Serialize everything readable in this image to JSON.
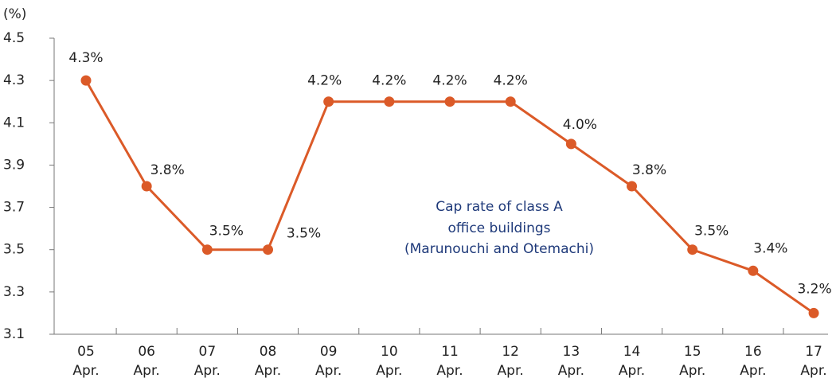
{
  "chart_data": {
    "type": "line",
    "y_axis_label": "(%)",
    "annotation": [
      "Cap rate of class A",
      "office buildings",
      "(Marunouchi and Otemachi)"
    ],
    "categories": [
      [
        "05",
        "Apr."
      ],
      [
        "06",
        "Apr."
      ],
      [
        "07",
        "Apr."
      ],
      [
        "08",
        "Apr."
      ],
      [
        "09",
        "Apr."
      ],
      [
        "10",
        "Apr."
      ],
      [
        "11",
        "Apr."
      ],
      [
        "12",
        "Apr."
      ],
      [
        "13",
        "Apr."
      ],
      [
        "14",
        "Apr."
      ],
      [
        "15",
        "Apr."
      ],
      [
        "16",
        "Apr."
      ],
      [
        "17",
        "Apr."
      ]
    ],
    "series": [
      {
        "name": "Cap rate of class A office buildings",
        "color": "#db5a28",
        "values": [
          4.3,
          3.8,
          3.5,
          3.5,
          4.2,
          4.2,
          4.2,
          4.2,
          4.0,
          3.8,
          3.5,
          3.4,
          3.2
        ],
        "value_labels": [
          "4.3%",
          "3.8%",
          "3.5%",
          "3.5%",
          "4.2%",
          "4.2%",
          "4.2%",
          "4.2%",
          "4.0%",
          "3.8%",
          "3.5%",
          "3.4%",
          "3.2%"
        ]
      }
    ],
    "ylim": [
      3.1,
      4.5
    ],
    "yticks": [
      3.1,
      3.3,
      3.5,
      3.7,
      3.9,
      4.1,
      4.3,
      4.5
    ]
  }
}
